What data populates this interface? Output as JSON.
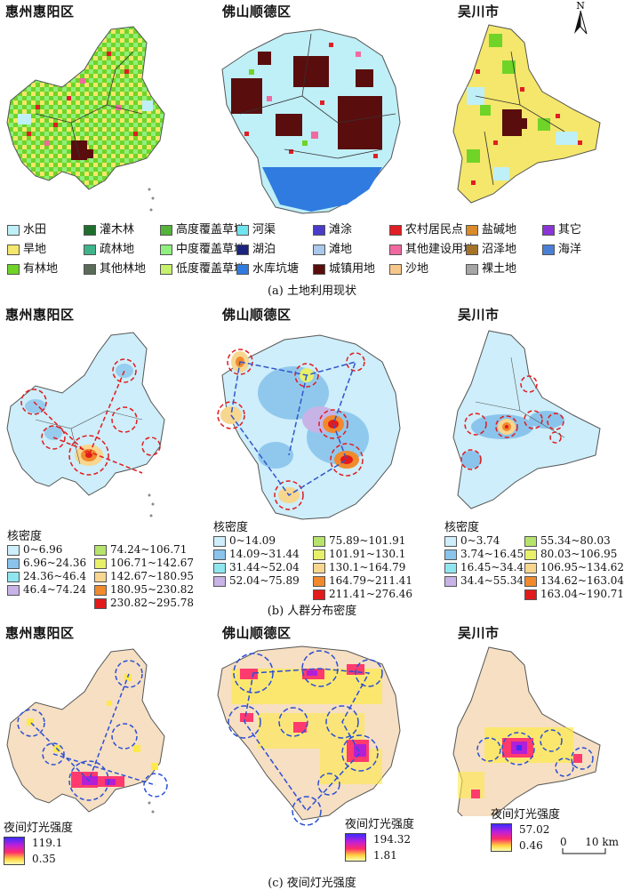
{
  "regions": {
    "huizhou": "惠州惠阳区",
    "foshan": "佛山顺德区",
    "wuchuan": "吴川市"
  },
  "north_label": "N",
  "land_use": {
    "caption": "(a) 土地利用现状",
    "legend": [
      {
        "label": "水田",
        "color": "#bfeff7"
      },
      {
        "label": "灌木林",
        "color": "#1f6e2e"
      },
      {
        "label": "高度覆盖草地",
        "color": "#53b33b"
      },
      {
        "label": "河渠",
        "color": "#6fe5f0"
      },
      {
        "label": "滩涂",
        "color": "#4a3bc9"
      },
      {
        "label": "农村居民点",
        "color": "#e11d25"
      },
      {
        "label": "盐碱地",
        "color": "#d98a2b"
      },
      {
        "label": "其它",
        "color": "#8b35d6"
      },
      {
        "label": "旱地",
        "color": "#f4e76b"
      },
      {
        "label": "疏林地",
        "color": "#40b38a"
      },
      {
        "label": "中度覆盖草地",
        "color": "#8ff07d"
      },
      {
        "label": "湖泊",
        "color": "#1a237e"
      },
      {
        "label": "滩地",
        "color": "#a9c8ea"
      },
      {
        "label": "其他建设用地",
        "color": "#f06aa0"
      },
      {
        "label": "沼泽地",
        "color": "#a57328"
      },
      {
        "label": "海洋",
        "color": "#4b7fd6"
      },
      {
        "label": "有林地",
        "color": "#6fd427"
      },
      {
        "label": "其他林地",
        "color": "#5a6b5a"
      },
      {
        "label": "低度覆盖草地",
        "color": "#c6f16b"
      },
      {
        "label": "水库坑塘",
        "color": "#2f7be0"
      },
      {
        "label": "城镇用地",
        "color": "#5a0d0d"
      },
      {
        "label": "沙地",
        "color": "#f6c98b"
      },
      {
        "label": "裸土地",
        "color": "#a6a6a6"
      }
    ]
  },
  "population": {
    "caption": "(b) 人群分布密度",
    "legend_title": "核密度",
    "huizhou": [
      "0~6.96",
      "6.96~24.36",
      "24.36~46.4",
      "46.4~74.24",
      "74.24~106.71",
      "106.71~142.67",
      "142.67~180.95",
      "180.95~230.82",
      "230.82~295.78"
    ],
    "foshan": [
      "0~14.09",
      "14.09~31.44",
      "31.44~52.04",
      "52.04~75.89",
      "75.89~101.91",
      "101.91~130.1",
      "130.1~164.79",
      "164.79~211.41",
      "211.41~276.46"
    ],
    "wuchuan": [
      "0~3.74",
      "3.74~16.45",
      "16.45~34.4",
      "34.4~55.34",
      "55.34~80.03",
      "80.03~106.95",
      "106.95~134.62",
      "134.62~163.04",
      "163.04~190.71"
    ],
    "colors": [
      "#cdeefa",
      "#8ac4ec",
      "#8fe6ef",
      "#c7b3e6",
      "#b6e36b",
      "#e8f06a",
      "#f7d68f",
      "#f08a2d",
      "#e31a1c"
    ]
  },
  "night_light": {
    "caption": "(c) 夜间灯光强度",
    "legend_title": "夜间灯光强度",
    "huizhou": {
      "max": "119.1",
      "min": "0.35"
    },
    "foshan": {
      "max": "194.32",
      "min": "1.81"
    },
    "wuchuan": {
      "max": "57.02",
      "min": "0.46"
    }
  },
  "scale_bar": {
    "left": "0",
    "right": "10 km"
  }
}
